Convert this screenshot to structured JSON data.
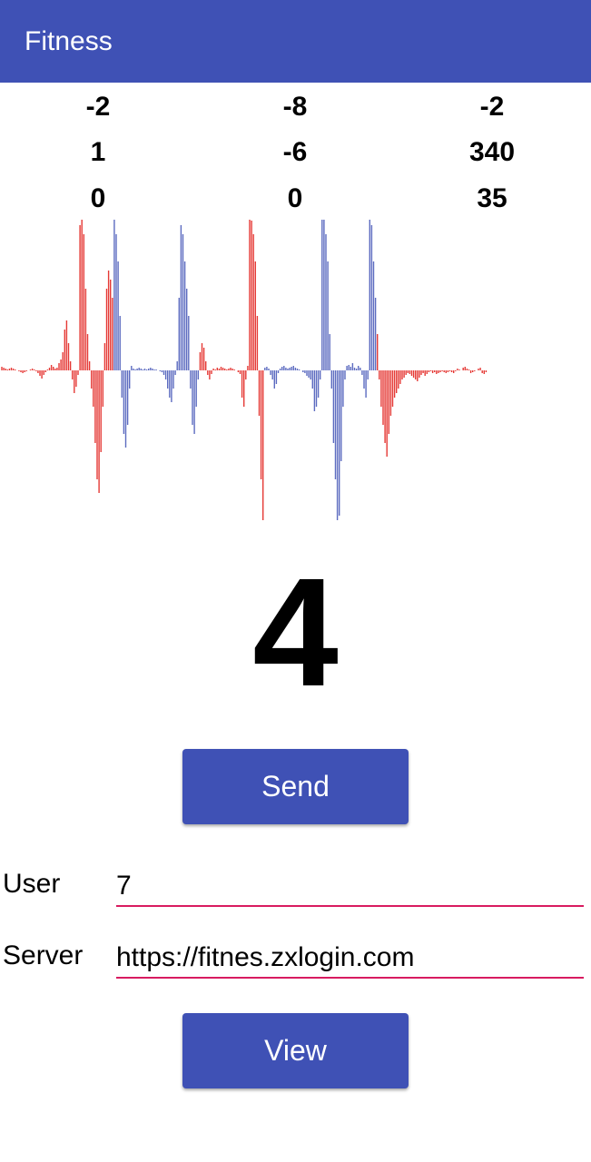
{
  "app_bar": {
    "title": "Fitness",
    "color": "#3f51b5"
  },
  "readings": [
    [
      "-2",
      "-8",
      "-2"
    ],
    [
      "1",
      "-6",
      "340"
    ],
    [
      "0",
      "0",
      "35"
    ]
  ],
  "waveform": {
    "colors": {
      "positive_band_a": "#e53935",
      "band_b": "#5c6bc0"
    },
    "segments": [
      {
        "color": "#e53935",
        "values": [
          4,
          3,
          2,
          1,
          2,
          3,
          2,
          1,
          0,
          -1,
          -2,
          -3,
          -2,
          -1,
          0,
          1,
          2,
          1,
          -1,
          -3,
          -6,
          -9,
          -5,
          -2,
          1,
          3,
          6,
          4,
          2,
          3,
          8,
          12,
          20,
          45,
          55,
          30,
          10,
          -10,
          -25,
          -18,
          -5,
          160,
          175,
          150,
          90,
          40,
          10,
          -20,
          -40,
          -80,
          -120,
          -135,
          -90,
          -40,
          30,
          90,
          110,
          100,
          80
        ]
      },
      {
        "color": "#5c6bc0",
        "values": [
          170,
          150,
          120,
          60,
          -30,
          -70,
          -85,
          -60,
          -20,
          5,
          2,
          1,
          2,
          3,
          2,
          1,
          2,
          1,
          2,
          3,
          2,
          1,
          1,
          0,
          -1,
          -2,
          -5,
          -10,
          -20,
          -30,
          -35,
          -20,
          -5,
          10,
          80,
          160,
          150,
          120,
          90,
          60,
          -20,
          -60,
          -70,
          -40,
          -10
        ]
      },
      {
        "color": "#e53935",
        "values": [
          20,
          30,
          25,
          10,
          -5,
          -10,
          -4,
          2,
          1,
          3,
          2,
          4,
          3,
          2,
          1,
          2,
          3,
          2,
          1,
          0,
          -2,
          -4,
          -30,
          -40,
          -10,
          5,
          170,
          165,
          150,
          120,
          60,
          -50,
          -120,
          -165
        ]
      },
      {
        "color": "#5c6bc0",
        "values": [
          3,
          4,
          2,
          -5,
          -10,
          -20,
          -15,
          -3,
          2,
          4,
          5,
          3,
          2,
          3,
          4,
          5,
          3,
          2,
          1,
          0,
          -2,
          -3,
          -6,
          -8,
          -10,
          -20,
          -45,
          -40,
          -30,
          -10,
          170,
          170,
          150,
          120,
          40,
          -20,
          -80,
          -120,
          -165,
          -160,
          -100,
          -40,
          -10,
          5,
          6,
          4,
          8,
          3,
          2,
          5,
          3,
          -5,
          -20,
          -30,
          -10,
          170,
          160,
          120,
          80
        ]
      },
      {
        "color": "#e53935",
        "values": [
          40,
          -10,
          -40,
          -60,
          -80,
          -95,
          -70,
          -50,
          -40,
          -30,
          -25,
          -20,
          -15,
          -10,
          -8,
          -5,
          -3,
          -4,
          -6,
          -8,
          -10,
          -12,
          -8,
          -5,
          -3,
          -6,
          -4,
          -2,
          -1,
          -3,
          -2,
          -4,
          -3,
          -2,
          -1,
          -2,
          -3,
          -2,
          -1,
          -2,
          -3,
          -1,
          2,
          1,
          0,
          3,
          4,
          2,
          1,
          -3,
          -2,
          -1,
          0,
          2,
          3,
          -3,
          -4,
          -2
        ]
      }
    ]
  },
  "count": "4",
  "send_button": {
    "label": "Send"
  },
  "form": {
    "user": {
      "label": "User",
      "value": "7"
    },
    "server": {
      "label": "Server",
      "value": "https://fitnes.zxlogin.com"
    }
  },
  "view_button": {
    "label": "View"
  }
}
